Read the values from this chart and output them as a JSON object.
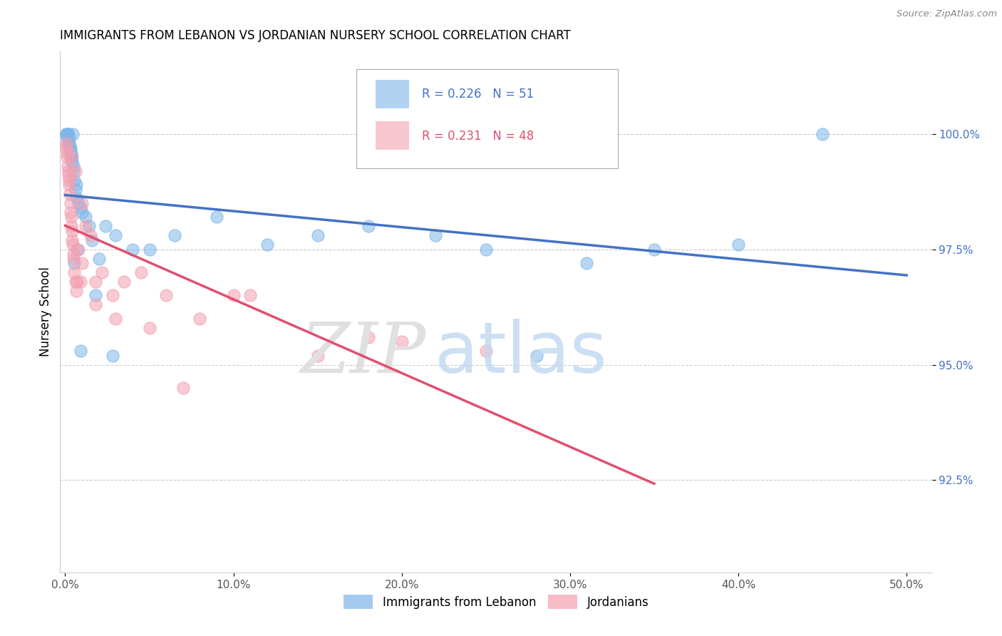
{
  "title": "IMMIGRANTS FROM LEBANON VS JORDANIAN NURSERY SCHOOL CORRELATION CHART",
  "source": "Source: ZipAtlas.com",
  "ylabel": "Nursery School",
  "xlim_min": -0.3,
  "xlim_max": 51.5,
  "ylim_min": 90.5,
  "ylim_max": 101.8,
  "yticks": [
    92.5,
    95.0,
    97.5,
    100.0
  ],
  "yticklabels": [
    "92.5%",
    "95.0%",
    "97.5%",
    "100.0%"
  ],
  "xticks": [
    0.0,
    10.0,
    20.0,
    30.0,
    40.0,
    50.0
  ],
  "xticklabels": [
    "0.0%",
    "10.0%",
    "20.0%",
    "30.0%",
    "40.0%",
    "50.0%"
  ],
  "legend_r_blue": "R = 0.226",
  "legend_n_blue": "N = 51",
  "legend_r_pink": "R = 0.231",
  "legend_n_pink": "N = 48",
  "legend_label_blue": "Immigrants from Lebanon",
  "legend_label_pink": "Jordanians",
  "blue_color": "#7EB6E8",
  "pink_color": "#F4A0B0",
  "blue_line_color": "#4472C4",
  "pink_line_color": "#E05070",
  "blue_x": [
    0.05,
    0.08,
    0.1,
    0.12,
    0.15,
    0.18,
    0.2,
    0.22,
    0.25,
    0.28,
    0.3,
    0.32,
    0.35,
    0.38,
    0.4,
    0.42,
    0.45,
    0.48,
    0.5,
    0.55,
    0.6,
    0.65,
    0.7,
    0.8,
    0.9,
    1.0,
    1.2,
    1.4,
    1.6,
    2.0,
    2.4,
    3.0,
    4.0,
    5.0,
    6.5,
    9.0,
    12.0,
    15.0,
    18.0,
    22.0,
    25.0,
    28.0,
    31.0,
    35.0,
    40.0,
    45.0,
    1.8,
    2.8,
    0.55,
    0.7,
    0.9
  ],
  "blue_y": [
    100.0,
    100.0,
    99.9,
    100.0,
    100.0,
    99.8,
    100.0,
    99.9,
    99.8,
    99.7,
    99.5,
    99.7,
    99.6,
    99.5,
    99.5,
    99.4,
    100.0,
    99.3,
    99.2,
    99.0,
    98.8,
    98.9,
    98.6,
    98.5,
    98.4,
    98.3,
    98.2,
    98.0,
    97.7,
    97.3,
    98.0,
    97.8,
    97.5,
    97.5,
    97.8,
    98.2,
    97.6,
    97.8,
    98.0,
    97.8,
    97.5,
    95.2,
    97.2,
    97.5,
    97.6,
    100.0,
    96.5,
    95.2,
    97.2,
    97.5,
    95.3
  ],
  "pink_x": [
    0.05,
    0.08,
    0.1,
    0.12,
    0.15,
    0.18,
    0.2,
    0.22,
    0.25,
    0.28,
    0.3,
    0.32,
    0.35,
    0.38,
    0.4,
    0.42,
    0.45,
    0.48,
    0.5,
    0.55,
    0.6,
    0.65,
    0.7,
    0.8,
    0.9,
    1.0,
    1.2,
    1.5,
    1.8,
    2.2,
    2.8,
    3.5,
    4.5,
    6.0,
    8.0,
    11.0,
    15.0,
    20.0,
    0.35,
    0.6,
    1.0,
    1.8,
    3.0,
    5.0,
    7.0,
    10.0,
    18.0,
    25.0
  ],
  "pink_y": [
    99.8,
    99.7,
    99.6,
    99.5,
    99.3,
    99.2,
    99.1,
    99.0,
    98.9,
    98.7,
    98.5,
    98.3,
    98.2,
    98.0,
    97.9,
    97.7,
    97.6,
    97.4,
    97.3,
    97.0,
    96.8,
    96.6,
    96.8,
    97.5,
    96.8,
    97.2,
    98.0,
    97.8,
    96.3,
    97.0,
    96.5,
    96.8,
    97.0,
    96.5,
    96.0,
    96.5,
    95.2,
    95.5,
    99.5,
    99.2,
    98.5,
    96.8,
    96.0,
    95.8,
    94.5,
    96.5,
    95.6,
    95.3
  ]
}
